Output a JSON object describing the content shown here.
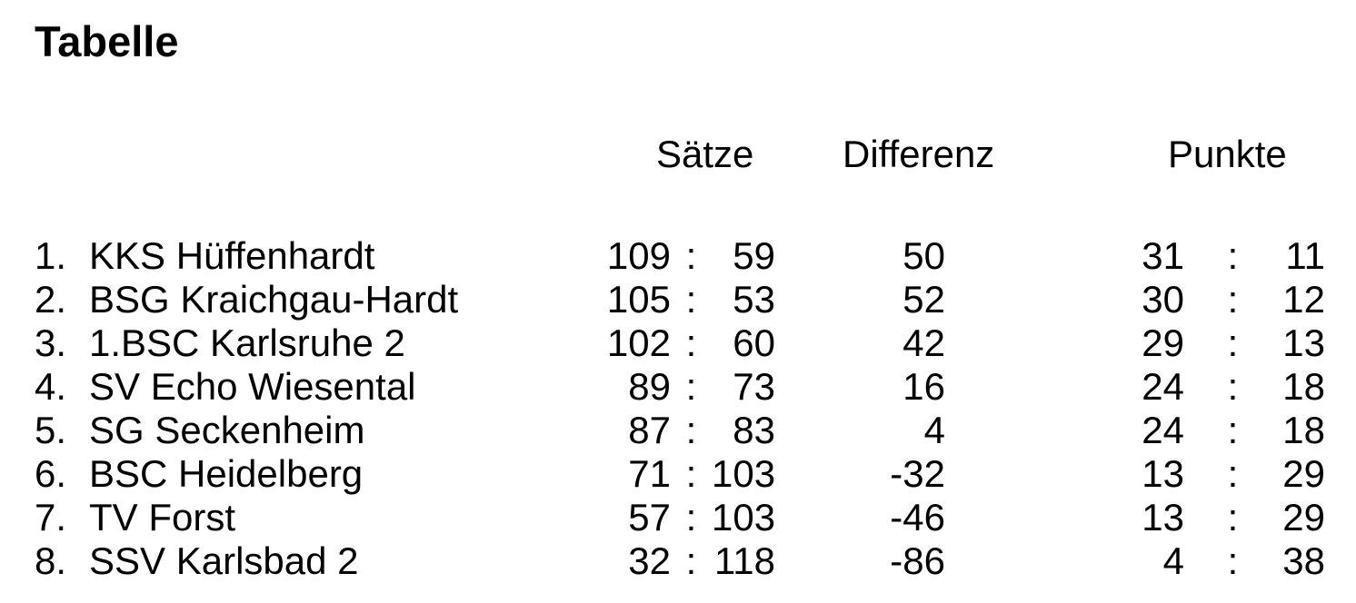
{
  "page": {
    "title": "Tabelle",
    "background_color": "#ffffff",
    "text_color": "#000000"
  },
  "standings": {
    "separator": ":",
    "headers": {
      "sets": "Sätze",
      "difference": "Differenz",
      "points": "Punkte"
    },
    "rows": [
      {
        "rank": "1.",
        "team": "KKS Hüffenhardt",
        "sets_for": "109",
        "sets_against": "59",
        "difference": "50",
        "points_for": "31",
        "points_against": "11"
      },
      {
        "rank": "2.",
        "team": "BSG Kraichgau-Hardt",
        "sets_for": "105",
        "sets_against": "53",
        "difference": "52",
        "points_for": "30",
        "points_against": "12"
      },
      {
        "rank": "3.",
        "team": "1.BSC Karlsruhe 2",
        "sets_for": "102",
        "sets_against": "60",
        "difference": "42",
        "points_for": "29",
        "points_against": "13"
      },
      {
        "rank": "4.",
        "team": "SV Echo Wiesental",
        "sets_for": "89",
        "sets_against": "73",
        "difference": "16",
        "points_for": "24",
        "points_against": "18"
      },
      {
        "rank": "5.",
        "team": "SG Seckenheim",
        "sets_for": "87",
        "sets_against": "83",
        "difference": "4",
        "points_for": "24",
        "points_against": "18"
      },
      {
        "rank": "6.",
        "team": "BSC Heidelberg",
        "sets_for": "71",
        "sets_against": "103",
        "difference": "-32",
        "points_for": "13",
        "points_against": "29"
      },
      {
        "rank": "7.",
        "team": "TV Forst",
        "sets_for": "57",
        "sets_against": "103",
        "difference": "-46",
        "points_for": "13",
        "points_against": "29"
      },
      {
        "rank": "8.",
        "team": "SSV Karlsbad 2",
        "sets_for": "32",
        "sets_against": "118",
        "difference": "-86",
        "points_for": "4",
        "points_against": "38"
      }
    ]
  }
}
